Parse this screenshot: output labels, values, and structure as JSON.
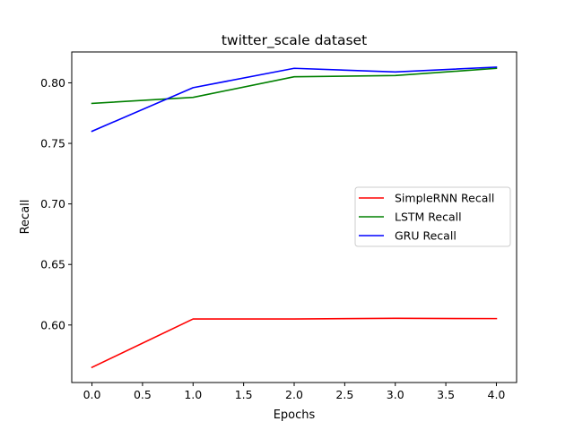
{
  "chart_data": {
    "type": "line",
    "title": "twitter_scale dataset",
    "xlabel": "Epochs",
    "ylabel": "Recall",
    "x": [
      0,
      1,
      2,
      3,
      4
    ],
    "xlim": [
      -0.2,
      4.2
    ],
    "ylim": [
      0.5525,
      0.8255
    ],
    "xticks": [
      0.0,
      0.5,
      1.0,
      1.5,
      2.0,
      2.5,
      3.0,
      3.5,
      4.0
    ],
    "xtick_labels": [
      "0.0",
      "0.5",
      "1.0",
      "1.5",
      "2.0",
      "2.5",
      "3.0",
      "3.5",
      "4.0"
    ],
    "yticks": [
      0.6,
      0.65,
      0.7,
      0.75,
      0.8
    ],
    "ytick_labels": [
      "0.60",
      "0.65",
      "0.70",
      "0.75",
      "0.80"
    ],
    "grid": false,
    "legend_position": "center-right",
    "series": [
      {
        "name": "SimpleRNN Recall",
        "color": "#ff0000",
        "values": [
          0.565,
          0.605,
          0.605,
          0.6055,
          0.6053
        ]
      },
      {
        "name": "LSTM Recall",
        "color": "#008000",
        "values": [
          0.783,
          0.788,
          0.805,
          0.806,
          0.812
        ]
      },
      {
        "name": "GRU Recall",
        "color": "#0000ff",
        "values": [
          0.76,
          0.796,
          0.812,
          0.809,
          0.813
        ]
      }
    ]
  }
}
